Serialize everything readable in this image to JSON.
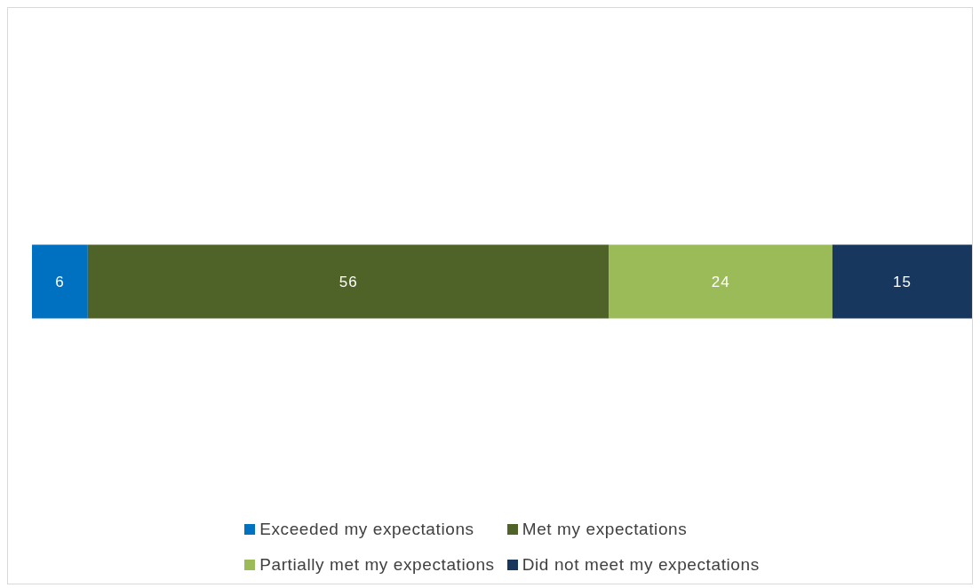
{
  "chart_data": {
    "type": "bar",
    "orientation": "horizontal",
    "stacked": true,
    "categories": [
      null
    ],
    "series": [
      {
        "name": "Exceeded my expectations",
        "color": "#0070c0",
        "values": [
          6
        ]
      },
      {
        "name": "Met my expectations",
        "color": "#4f6228",
        "values": [
          56
        ]
      },
      {
        "name": "Partially met my expectations",
        "color": "#9bbb59",
        "values": [
          24
        ]
      },
      {
        "name": "Did not meet my expectations",
        "color": "#17375e",
        "values": [
          15
        ]
      }
    ],
    "data_labels": true,
    "legend": "bottom",
    "grid": false
  }
}
